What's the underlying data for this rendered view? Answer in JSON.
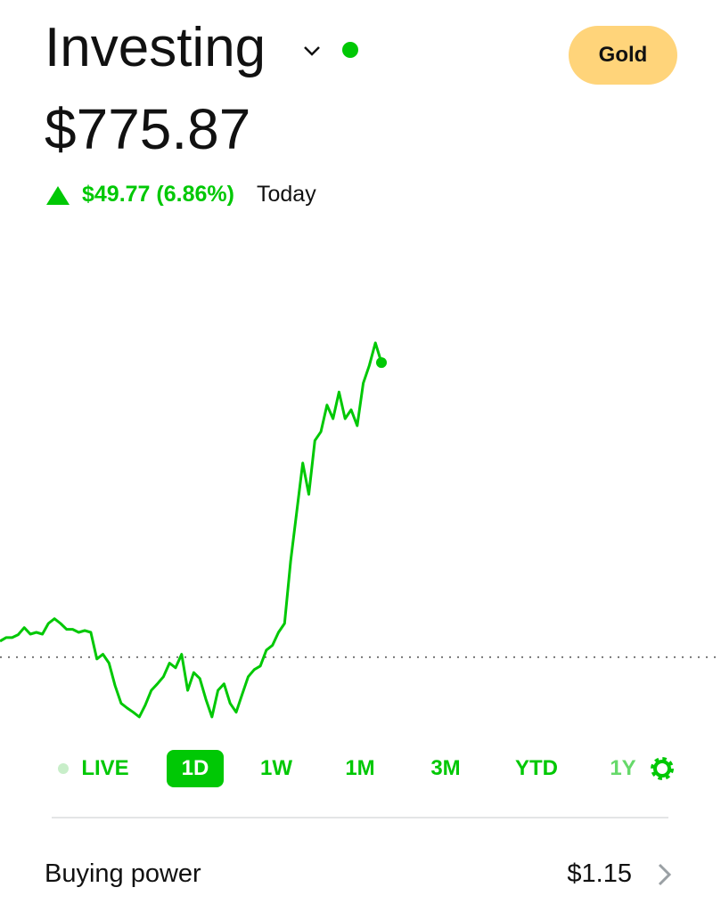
{
  "header": {
    "title": "Investing",
    "portfolio_value": "$775.87",
    "change": "$49.77 (6.86%)",
    "change_period": "Today",
    "gold_button": "Gold"
  },
  "chart_data": {
    "type": "line",
    "color": "#00c805",
    "previous_close": 726.1,
    "values": [
      728.8,
      729.4,
      729.4,
      729.9,
      731.1,
      730.0,
      730.3,
      730.0,
      731.8,
      732.6,
      731.8,
      730.8,
      730.8,
      730.3,
      730.6,
      730.3,
      725.8,
      726.6,
      725.1,
      721.3,
      718.3,
      717.5,
      716.8,
      716.0,
      718.0,
      720.5,
      721.6,
      722.8,
      725.1,
      724.3,
      726.6,
      720.5,
      723.5,
      722.5,
      719.0,
      716.0,
      720.5,
      721.6,
      718.3,
      716.8,
      719.8,
      722.8,
      724.0,
      724.6,
      727.3,
      728.1,
      730.3,
      731.8,
      742.3,
      750.6,
      758.9,
      753.6,
      762.7,
      764.2,
      768.7,
      766.4,
      770.9,
      766.4,
      767.9,
      765.2,
      772.4,
      775.4,
      779.2,
      775.87
    ]
  },
  "ranges": [
    "LIVE",
    "1D",
    "1W",
    "1M",
    "3M",
    "YTD",
    "1Y"
  ],
  "selected_range": "1D",
  "buying_power": {
    "label": "Buying power",
    "value": "$1.15"
  }
}
